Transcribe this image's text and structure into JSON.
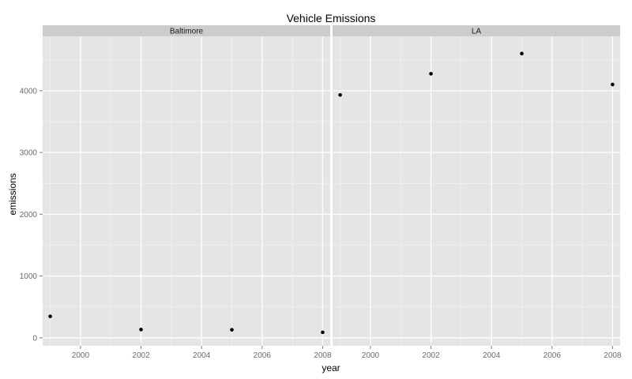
{
  "chart_data": {
    "type": "scatter",
    "title": "Vehicle Emissions",
    "xlabel": "year",
    "ylabel": "emissions",
    "xlim": [
      1998.75,
      2008.25
    ],
    "ylim": [
      -130,
      4880
    ],
    "x_ticks": [
      2000,
      2002,
      2004,
      2006,
      2008
    ],
    "y_ticks": [
      0,
      1000,
      2000,
      3000,
      4000
    ],
    "grid": true,
    "facets": [
      {
        "name": "Baltimore",
        "points": [
          {
            "x": 1999,
            "y": 347
          },
          {
            "x": 2002,
            "y": 134
          },
          {
            "x": 2005,
            "y": 130
          },
          {
            "x": 2008,
            "y": 89
          }
        ]
      },
      {
        "name": "LA",
        "points": [
          {
            "x": 1999,
            "y": 3931
          },
          {
            "x": 2002,
            "y": 4274
          },
          {
            "x": 2005,
            "y": 4601
          },
          {
            "x": 2008,
            "y": 4101
          }
        ]
      }
    ],
    "colors": {
      "panel_background": "#e5e5e5",
      "grid_major": "#ffffff",
      "grid_minor": "#f2f2f2",
      "strip_background": "#cccccc",
      "point": "#000000"
    }
  }
}
